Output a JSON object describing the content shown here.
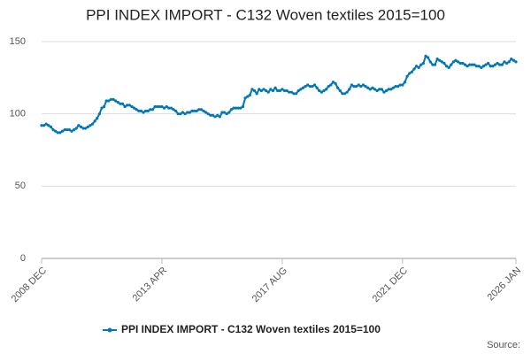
{
  "chart_data": {
    "type": "line",
    "title": "PPI INDEX IMPORT - C132 Woven textiles 2015=100",
    "source": "Source:",
    "categories": [
      "2008 DEC",
      null,
      null,
      null,
      null,
      null,
      null,
      null,
      null,
      null,
      null,
      null,
      null,
      null,
      null,
      null,
      null,
      null,
      null,
      null,
      null,
      null,
      null,
      null,
      null,
      null,
      null,
      null,
      null,
      null,
      null,
      null,
      null,
      null,
      null,
      null,
      null,
      null,
      null,
      null,
      null,
      null,
      null,
      null,
      null,
      null,
      null,
      null,
      null,
      null,
      null,
      null,
      "2013 APR",
      null,
      null,
      null,
      null,
      null,
      null,
      null,
      null,
      null,
      null,
      null,
      null,
      null,
      null,
      null,
      null,
      null,
      null,
      null,
      null,
      null,
      null,
      null,
      null,
      null,
      null,
      null,
      null,
      null,
      null,
      null,
      null,
      null,
      null,
      null,
      null,
      null,
      null,
      null,
      null,
      null,
      null,
      null,
      null,
      null,
      null,
      null,
      null,
      null,
      null,
      null,
      "2017 AUG",
      null,
      null,
      null,
      null,
      null,
      null,
      null,
      null,
      null,
      null,
      null,
      null,
      null,
      null,
      null,
      null,
      null,
      null,
      null,
      null,
      null,
      null,
      null,
      null,
      null,
      null,
      null,
      null,
      null,
      null,
      null,
      null,
      null,
      null,
      null,
      null,
      null,
      null,
      null,
      null,
      null,
      null,
      null,
      null,
      null,
      null,
      null,
      null,
      null,
      null,
      null,
      "2021 DEC",
      null,
      null,
      null,
      null,
      null,
      null,
      null,
      null,
      null,
      null,
      null,
      null,
      null,
      null,
      null,
      null,
      null,
      null,
      null,
      null,
      null,
      null,
      null,
      null,
      null,
      null,
      null,
      null,
      null,
      null,
      null,
      null,
      null,
      null,
      null,
      null,
      null,
      null,
      null,
      null,
      null,
      null,
      null,
      null,
      null,
      null,
      null,
      null,
      "2026 JAN"
    ],
    "series": [
      {
        "name": "PPI INDEX IMPORT - C132 Woven textiles 2015=100",
        "color": "#0077b6",
        "values": [
          92,
          92,
          93,
          92,
          91,
          89,
          88,
          87,
          87,
          88,
          89,
          89,
          89,
          88,
          89,
          90,
          92,
          91,
          90,
          90,
          91,
          92,
          93,
          95,
          97,
          100,
          104,
          105,
          109,
          109,
          110,
          110,
          109,
          108,
          107,
          107,
          105,
          106,
          106,
          105,
          104,
          103,
          102,
          102,
          101,
          102,
          102,
          103,
          103,
          105,
          105,
          105,
          105,
          104,
          105,
          104,
          104,
          103,
          102,
          100,
          100,
          101,
          100,
          101,
          101,
          102,
          102,
          102,
          103,
          103,
          102,
          101,
          100,
          99,
          99,
          98,
          99,
          98,
          101,
          101,
          100,
          101,
          103,
          104,
          104,
          104,
          104,
          105,
          111,
          112,
          113,
          117,
          116,
          114,
          117,
          116,
          117,
          116,
          115,
          117,
          116,
          118,
          116,
          116,
          117,
          116,
          116,
          115,
          115,
          114,
          114,
          116,
          117,
          118,
          119,
          120,
          119,
          119,
          120,
          118,
          116,
          115,
          116,
          117,
          119,
          120,
          122,
          121,
          118,
          116,
          114,
          114,
          115,
          117,
          120,
          119,
          119,
          120,
          119,
          120,
          119,
          118,
          117,
          118,
          117,
          116,
          117,
          117,
          115,
          116,
          117,
          117,
          118,
          119,
          119,
          120,
          120,
          122,
          126,
          128,
          129,
          131,
          133,
          132,
          134,
          135,
          140,
          139,
          136,
          134,
          134,
          138,
          137,
          136,
          135,
          133,
          132,
          134,
          136,
          137,
          136,
          135,
          135,
          134,
          133,
          134,
          134,
          134,
          133,
          133,
          132,
          133,
          134,
          135,
          133,
          133,
          134,
          135,
          134,
          134,
          136,
          135,
          136,
          138,
          137,
          136
        ]
      }
    ],
    "ylim": [
      0,
      150
    ],
    "yticks": [
      0,
      50,
      100,
      150
    ],
    "grid": true
  }
}
